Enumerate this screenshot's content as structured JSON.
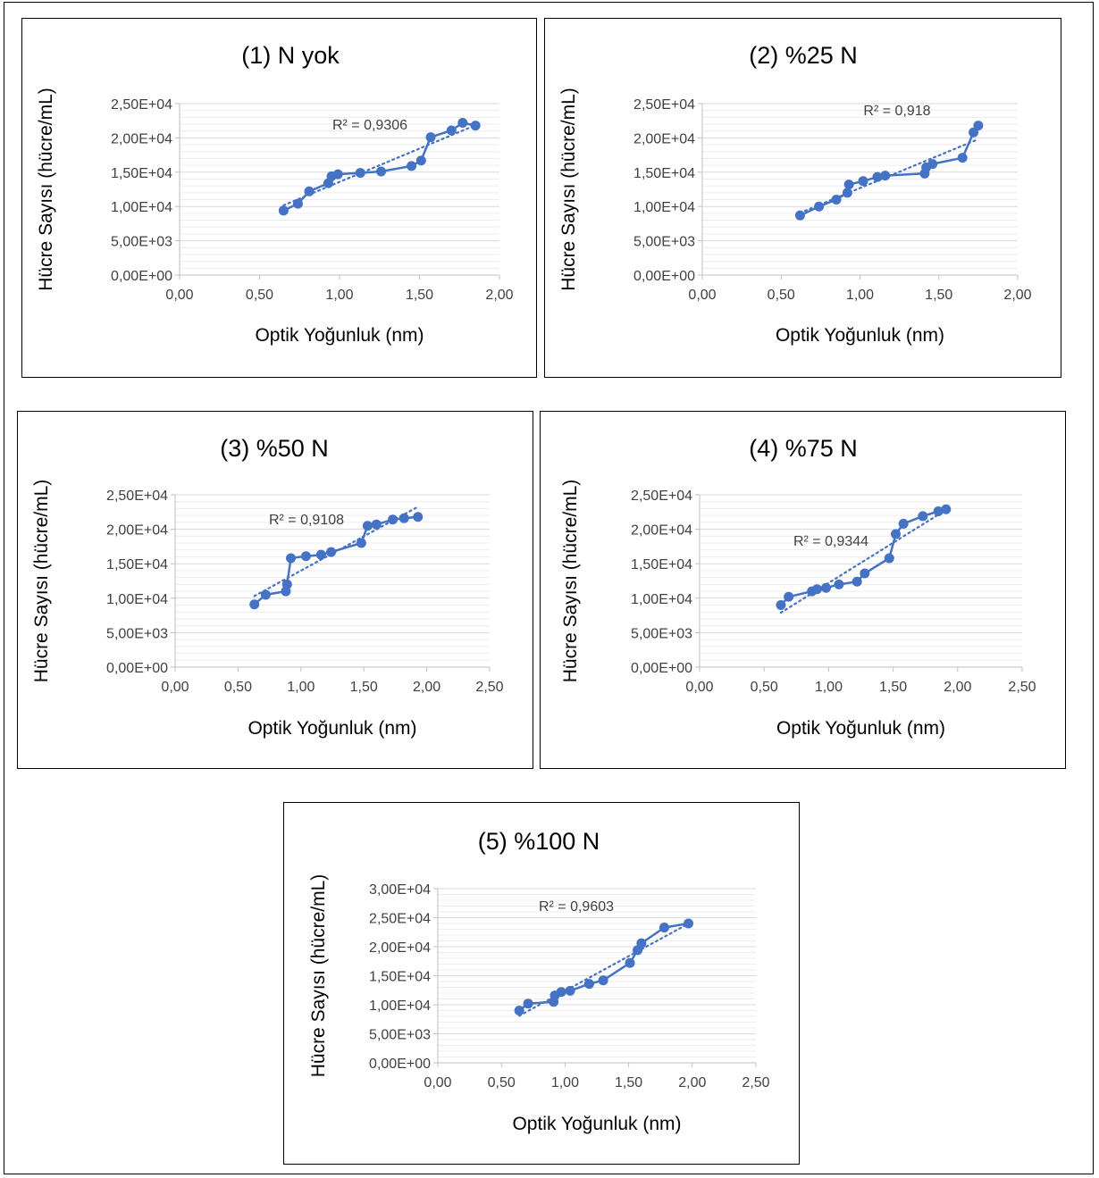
{
  "figure": {
    "colors": {
      "series": "#4472C4",
      "grid": "#d9d9d9",
      "axis": "#bfbfbf",
      "text": "#000000"
    }
  },
  "chart_data": [
    {
      "type": "line",
      "title": "(1) N yok",
      "xlabel": "Optik Yoğunluk (nm)",
      "ylabel": "Hücre Sayısı (hücre/mL)",
      "xlim": [
        0,
        2
      ],
      "ylim": [
        0,
        25000
      ],
      "x_ticks": [
        "0,00",
        "0,50",
        "1,00",
        "1,50",
        "2,00"
      ],
      "y_ticks": [
        "0,00E+00",
        "5,00E+03",
        "1,00E+04",
        "1,50E+04",
        "2,00E+04",
        "2,50E+04"
      ],
      "grid": true,
      "trendline": "linear",
      "r2_label": "R² = 0,9306",
      "series": [
        {
          "x": [
            0.65,
            0.74,
            0.81,
            0.93,
            0.95,
            0.99,
            1.13,
            1.26,
            1.45,
            1.51,
            1.57,
            1.7,
            1.77,
            1.85
          ],
          "y": [
            9400,
            10400,
            12200,
            13400,
            14400,
            14700,
            14900,
            15100,
            15900,
            16700,
            20100,
            21100,
            22200,
            21800
          ]
        }
      ]
    },
    {
      "type": "line",
      "title": "(2) %25 N",
      "xlabel": "Optik Yoğunluk (nm)",
      "ylabel": "Hücre Sayısı (hücre/mL)",
      "xlim": [
        0,
        2
      ],
      "ylim": [
        0,
        25000
      ],
      "x_ticks": [
        "0,00",
        "0,50",
        "1,00",
        "1,50",
        "2,00"
      ],
      "y_ticks": [
        "0,00E+00",
        "5,00E+03",
        "1,00E+04",
        "1,50E+04",
        "2,00E+04",
        "2,50E+04"
      ],
      "grid": true,
      "trendline": "linear",
      "r2_label": "R² = 0,918",
      "series": [
        {
          "x": [
            0.62,
            0.74,
            0.85,
            0.92,
            0.93,
            1.02,
            1.11,
            1.16,
            1.41,
            1.42,
            1.46,
            1.65,
            1.72,
            1.75
          ],
          "y": [
            8700,
            10000,
            11000,
            12000,
            13200,
            13700,
            14300,
            14500,
            14800,
            15700,
            16200,
            17100,
            20800,
            21800
          ]
        }
      ]
    },
    {
      "type": "line",
      "title": "(3) %50 N",
      "xlabel": "Optik Yoğunluk (nm)",
      "ylabel": "Hücre Sayısı (hücre/mL)",
      "xlim": [
        0,
        2.5
      ],
      "ylim": [
        0,
        25000
      ],
      "x_ticks": [
        "0,00",
        "0,50",
        "1,00",
        "1,50",
        "2,00",
        "2,50"
      ],
      "y_ticks": [
        "0,00E+00",
        "5,00E+03",
        "1,00E+04",
        "1,50E+04",
        "2,00E+04",
        "2,50E+04"
      ],
      "grid": true,
      "trendline": "linear",
      "r2_label": "R² = 0,9108",
      "series": [
        {
          "x": [
            0.63,
            0.72,
            0.88,
            0.89,
            0.92,
            1.04,
            1.16,
            1.24,
            1.48,
            1.53,
            1.6,
            1.73,
            1.82,
            1.93
          ],
          "y": [
            9100,
            10500,
            11000,
            12000,
            15800,
            16100,
            16300,
            16700,
            18000,
            20500,
            20700,
            21400,
            21600,
            21800
          ]
        }
      ]
    },
    {
      "type": "line",
      "title": "(4) %75 N",
      "xlabel": "Optik Yoğunluk (nm)",
      "ylabel": "Hücre Sayısı (hücre/mL)",
      "xlim": [
        0,
        2.5
      ],
      "ylim": [
        0,
        25000
      ],
      "x_ticks": [
        "0,00",
        "0,50",
        "1,00",
        "1,50",
        "2,00",
        "2,50"
      ],
      "y_ticks": [
        "0,00E+00",
        "5,00E+03",
        "1,00E+04",
        "1,50E+04",
        "2,00E+04",
        "2,50E+04"
      ],
      "grid": true,
      "trendline": "linear",
      "r2_label": "R² = 0,9344",
      "series": [
        {
          "x": [
            0.63,
            0.69,
            0.87,
            0.91,
            0.98,
            1.08,
            1.22,
            1.28,
            1.47,
            1.52,
            1.58,
            1.73,
            1.85,
            1.91
          ],
          "y": [
            9000,
            10200,
            11000,
            11300,
            11500,
            12000,
            12400,
            13600,
            15800,
            19300,
            20800,
            21900,
            22600,
            22900
          ]
        }
      ]
    },
    {
      "type": "line",
      "title": "(5) %100 N",
      "xlabel": "Optik Yoğunluk (nm)",
      "ylabel": "Hücre Sayısı (hücre/mL)",
      "xlim": [
        0,
        2.5
      ],
      "ylim": [
        0,
        30000
      ],
      "x_ticks": [
        "0,00",
        "0,50",
        "1,00",
        "1,50",
        "2,00",
        "2,50"
      ],
      "y_ticks": [
        "0,00E+00",
        "5,00E+03",
        "1,00E+04",
        "1,50E+04",
        "2,00E+04",
        "2,50E+04",
        "3,00E+04"
      ],
      "grid": true,
      "trendline": "linear",
      "r2_label": "R² = 0,9603",
      "series": [
        {
          "x": [
            0.64,
            0.71,
            0.91,
            0.92,
            0.97,
            1.04,
            1.19,
            1.3,
            1.51,
            1.57,
            1.6,
            1.78,
            1.97
          ],
          "y": [
            9000,
            10200,
            10500,
            11600,
            12200,
            12400,
            13600,
            14200,
            17200,
            19400,
            20600,
            23300,
            24000
          ]
        }
      ]
    }
  ]
}
